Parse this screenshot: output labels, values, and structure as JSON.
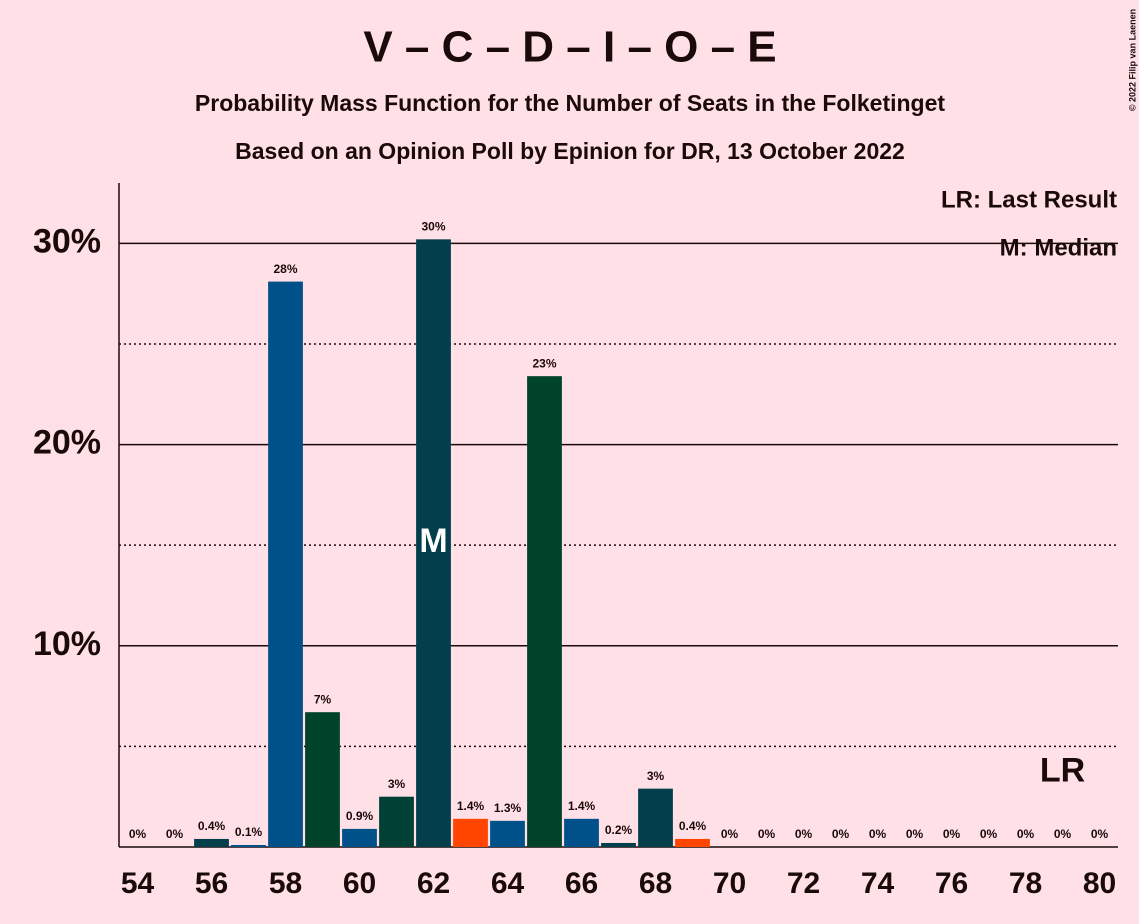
{
  "chart_data": {
    "type": "bar",
    "title": "V – C – D – I – O – E",
    "subtitle": "Probability Mass Function for the Number of Seats in the Folketinget",
    "subtitle2": "Based on an Opinion Poll by Epinion for DR, 13 October 2022",
    "copyright": "© 2022 Filip van Laenen",
    "x": [
      54,
      55,
      56,
      57,
      58,
      59,
      60,
      61,
      62,
      63,
      64,
      65,
      66,
      67,
      68,
      69,
      70,
      71,
      72,
      73,
      74,
      75,
      76,
      77,
      78,
      79,
      80
    ],
    "values": [
      0,
      0,
      0.4,
      0.1,
      28.1,
      6.7,
      0.9,
      2.5,
      30.2,
      1.4,
      1.3,
      23.4,
      1.4,
      0.2,
      2.9,
      0.4,
      0,
      0,
      0,
      0,
      0,
      0,
      0,
      0,
      0,
      0,
      0
    ],
    "value_labels": [
      "0%",
      "0%",
      "0.4%",
      "0.1%",
      "28%",
      "7%",
      "0.9%",
      "3%",
      "30%",
      "1.4%",
      "1.3%",
      "23%",
      "1.4%",
      "0.2%",
      "3%",
      "0.4%",
      "0%",
      "0%",
      "0%",
      "0%",
      "0%",
      "0%",
      "0%",
      "0%",
      "0%",
      "0%",
      "0%"
    ],
    "colors": [
      "#023f4a",
      "#00508a",
      "#023f4a",
      "#00508a",
      "#00508a",
      "#00432b",
      "#00508a",
      "#004135",
      "#023f4a",
      "#ff4500",
      "#00508a",
      "#00432b",
      "#00508a",
      "#023f4a",
      "#023f4a",
      "#ff4500",
      "#023f4a",
      "#00508a",
      "#00432b",
      "#00508a",
      "#004135",
      "#023f4a",
      "#ff4500",
      "#00508a",
      "#00432b",
      "#00508a",
      "#023f4a"
    ],
    "xlim": [
      53.5,
      80.5
    ],
    "xticks": [
      54,
      56,
      58,
      60,
      62,
      64,
      66,
      68,
      70,
      72,
      74,
      76,
      78,
      80
    ],
    "ylim": [
      0,
      33
    ],
    "yticks": [
      {
        "value": 10,
        "label": "10%"
      },
      {
        "value": 20,
        "label": "20%"
      },
      {
        "value": 30,
        "label": "30%"
      }
    ],
    "minor_yticks": [
      5,
      15,
      25
    ],
    "grid": true,
    "median": 62,
    "median_label": "M",
    "last_result": 79,
    "last_result_label": "LR",
    "legend": [
      "LR: Last Result",
      "M: Median"
    ]
  }
}
